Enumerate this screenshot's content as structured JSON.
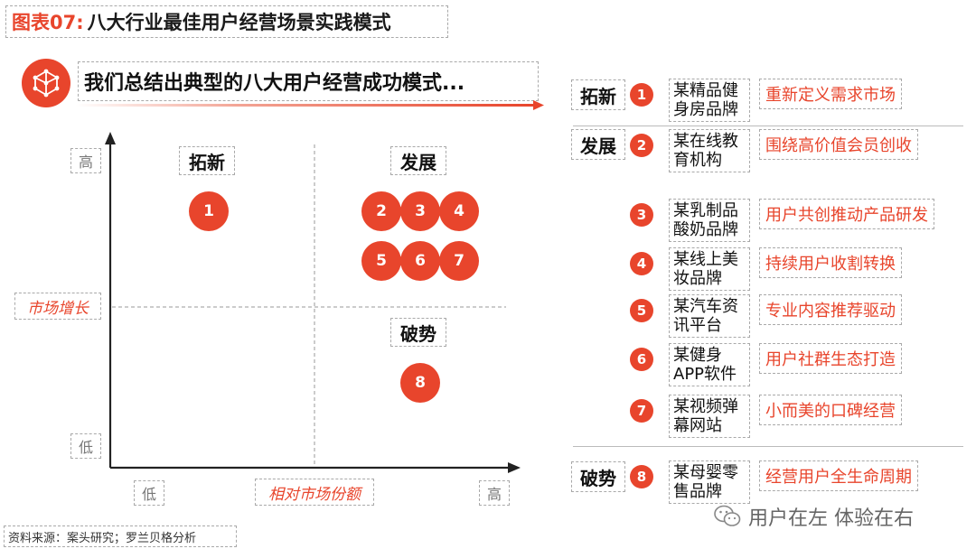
{
  "figure": {
    "number": "图表07:",
    "title": "八大行业最佳用户经营场景实践模式"
  },
  "headline": "我们总结出典型的八大用户经营成功模式...",
  "chart": {
    "y_axis": {
      "title": "市场增长",
      "high": "高",
      "low": "低"
    },
    "x_axis": {
      "title": "相对市场份额",
      "low": "低",
      "high": "高"
    },
    "quadrants": {
      "top_left": "拓新",
      "top_right": "发展",
      "bottom_right": "破势"
    },
    "points": [
      {
        "label": "1",
        "quadrant": "拓新"
      },
      {
        "label": "2",
        "quadrant": "发展"
      },
      {
        "label": "3",
        "quadrant": "发展"
      },
      {
        "label": "4",
        "quadrant": "发展"
      },
      {
        "label": "5",
        "quadrant": "发展"
      },
      {
        "label": "6",
        "quadrant": "发展"
      },
      {
        "label": "7",
        "quadrant": "发展"
      },
      {
        "label": "8",
        "quadrant": "破势"
      }
    ]
  },
  "list": {
    "categories": [
      "拓新",
      "发展",
      "破势"
    ],
    "items": [
      {
        "num": "1",
        "company": "某精品健身房品牌",
        "practice": "重新定义需求市场"
      },
      {
        "num": "2",
        "company": "某在线教育机构",
        "practice": "围绕高价值会员创收"
      },
      {
        "num": "3",
        "company": "某乳制品酸奶品牌",
        "practice": "用户共创推动产品研发"
      },
      {
        "num": "4",
        "company": "某线上美妆品牌",
        "practice": "持续用户收割转换"
      },
      {
        "num": "5",
        "company": "某汽车资讯平台",
        "practice": "专业内容推荐驱动"
      },
      {
        "num": "6",
        "company": "某健身APP软件",
        "practice": "用户社群生态打造"
      },
      {
        "num": "7",
        "company": "某视频弹幕网站",
        "practice": "小而美的口碑经营"
      },
      {
        "num": "8",
        "company": "某母婴零售品牌",
        "practice": "经营用户全生命周期"
      }
    ]
  },
  "source": "资料来源：案头研究；罗兰贝格分析",
  "watermark": "用户在左 体验在右",
  "colors": {
    "accent": "#e8452c",
    "dashed_border": "#a9a9a9"
  }
}
